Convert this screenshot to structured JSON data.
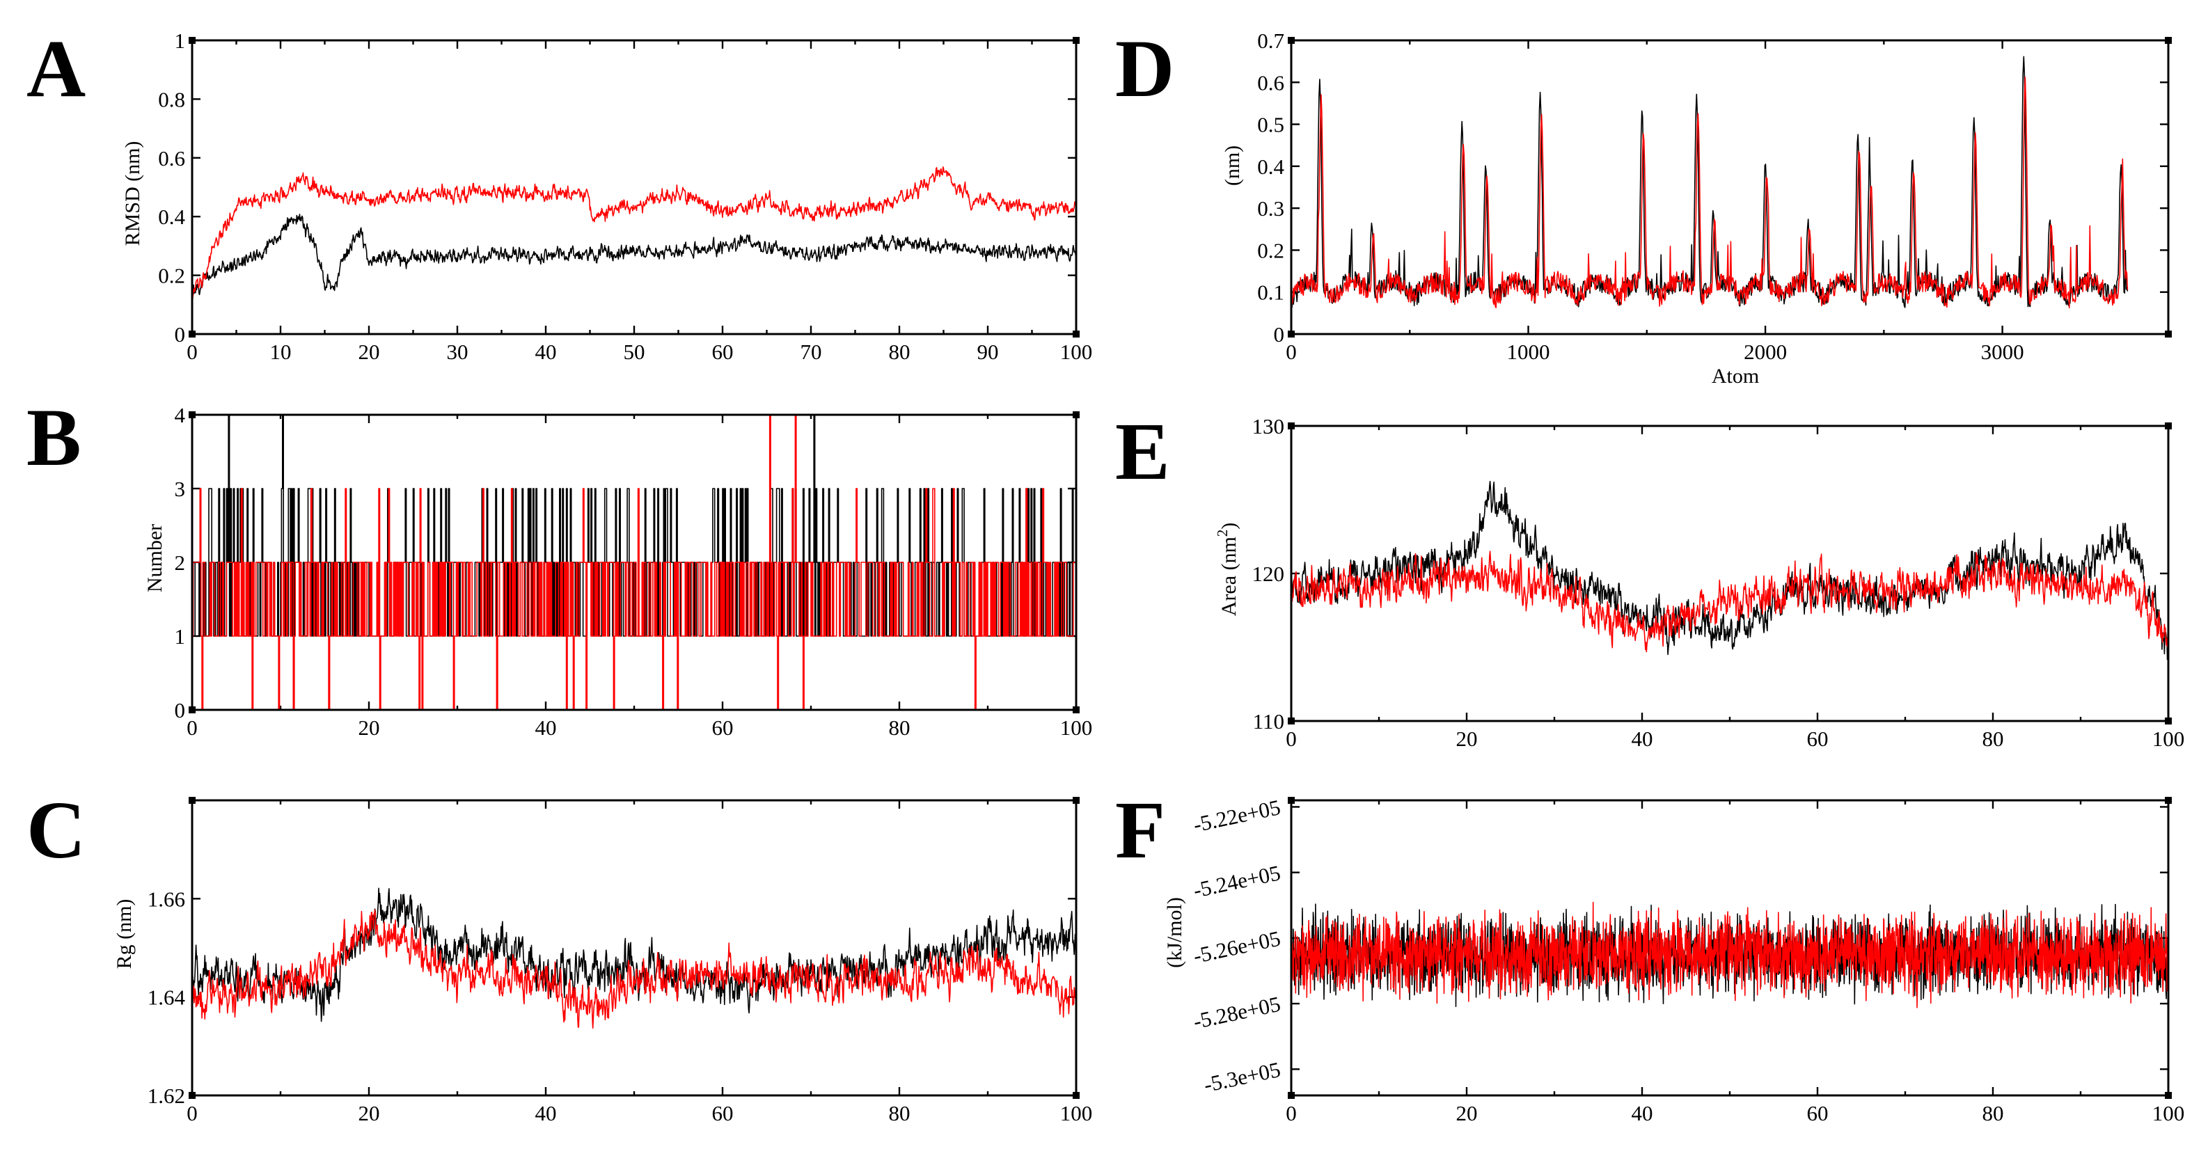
{
  "colors": {
    "series_black": "#000000",
    "series_red": "#ff0000",
    "axis": "#000000",
    "background": "#ffffff"
  },
  "chart_data": [
    {
      "panel": "A",
      "type": "line",
      "xlabel": "",
      "ylabel": "RMSD (nm)",
      "xlim": [
        0,
        100
      ],
      "ylim": [
        0,
        1
      ],
      "xticks": [
        "0",
        "10",
        "20",
        "30",
        "40",
        "50",
        "60",
        "70",
        "80",
        "90",
        "100"
      ],
      "yticks": [
        "0",
        "0.2",
        "0.4",
        "0.6",
        "0.8",
        "1"
      ],
      "series": [
        {
          "name": "black",
          "color": "#000000",
          "segments": [
            [
              0,
              0.15
            ],
            [
              3,
              0.22
            ],
            [
              6,
              0.25
            ],
            [
              8,
              0.28
            ],
            [
              10,
              0.35
            ],
            [
              12,
              0.4
            ],
            [
              14,
              0.3
            ],
            [
              15,
              0.18
            ],
            [
              16,
              0.15
            ],
            [
              17,
              0.25
            ],
            [
              18,
              0.3
            ],
            [
              19,
              0.35
            ],
            [
              20,
              0.26
            ],
            [
              30,
              0.27
            ],
            [
              40,
              0.27
            ],
            [
              50,
              0.28
            ],
            [
              60,
              0.29
            ],
            [
              63,
              0.32
            ],
            [
              65,
              0.29
            ],
            [
              70,
              0.27
            ],
            [
              75,
              0.3
            ],
            [
              80,
              0.31
            ],
            [
              90,
              0.28
            ],
            [
              100,
              0.28
            ]
          ],
          "noise": 0.025
        },
        {
          "name": "red",
          "color": "#ff0000",
          "segments": [
            [
              0,
              0.12
            ],
            [
              3,
              0.32
            ],
            [
              5,
              0.44
            ],
            [
              10,
              0.47
            ],
            [
              12,
              0.53
            ],
            [
              15,
              0.49
            ],
            [
              20,
              0.45
            ],
            [
              25,
              0.47
            ],
            [
              30,
              0.48
            ],
            [
              40,
              0.48
            ],
            [
              44.8,
              0.48
            ],
            [
              45.2,
              0.4
            ],
            [
              50,
              0.44
            ],
            [
              55,
              0.48
            ],
            [
              60,
              0.42
            ],
            [
              65,
              0.45
            ],
            [
              70,
              0.41
            ],
            [
              75,
              0.43
            ],
            [
              80,
              0.45
            ],
            [
              85,
              0.56
            ],
            [
              88,
              0.46
            ],
            [
              95,
              0.43
            ],
            [
              100,
              0.43
            ]
          ],
          "noise": 0.025
        }
      ]
    },
    {
      "panel": "B",
      "type": "line",
      "xlabel": "",
      "ylabel": "Number",
      "xlim": [
        0,
        100
      ],
      "ylim": [
        0,
        4
      ],
      "xticks": [
        "0",
        "20",
        "40",
        "60",
        "80",
        "100"
      ],
      "yticks": [
        "0",
        "1",
        "2",
        "3",
        "4"
      ],
      "series": [
        {
          "name": "black",
          "color": "#000000",
          "levels": [
            1,
            2,
            3,
            4
          ],
          "weights": [
            0.45,
            0.43,
            0.115,
            0.005
          ]
        },
        {
          "name": "red",
          "color": "#ff0000",
          "levels": [
            0,
            1,
            2,
            3,
            4
          ],
          "weights": [
            0.02,
            0.5,
            0.46,
            0.015,
            0.005
          ]
        }
      ]
    },
    {
      "panel": "C",
      "type": "line",
      "xlabel": "",
      "ylabel": "Rg (nm)",
      "xlim": [
        0,
        100
      ],
      "ylim": [
        1.62,
        1.68
      ],
      "xticks": [
        "0",
        "20",
        "40",
        "60",
        "80",
        "100"
      ],
      "yticks": [
        "1.62",
        "1.64",
        "1.66"
      ],
      "ytick_values": [
        1.62,
        1.64,
        1.66
      ],
      "series": [
        {
          "name": "black",
          "color": "#000000",
          "segments": [
            [
              0,
              1.645
            ],
            [
              10,
              1.643
            ],
            [
              15,
              1.64
            ],
            [
              20,
              1.655
            ],
            [
              24,
              1.66
            ],
            [
              28,
              1.65
            ],
            [
              35,
              1.65
            ],
            [
              40,
              1.645
            ],
            [
              50,
              1.646
            ],
            [
              60,
              1.642
            ],
            [
              70,
              1.645
            ],
            [
              80,
              1.646
            ],
            [
              90,
              1.652
            ],
            [
              100,
              1.652
            ]
          ],
          "noise": 0.004
        },
        {
          "name": "red",
          "color": "#ff0000",
          "segments": [
            [
              0,
              1.64
            ],
            [
              10,
              1.642
            ],
            [
              15,
              1.645
            ],
            [
              20,
              1.654
            ],
            [
              25,
              1.65
            ],
            [
              30,
              1.645
            ],
            [
              40,
              1.643
            ],
            [
              45,
              1.638
            ],
            [
              50,
              1.643
            ],
            [
              60,
              1.645
            ],
            [
              70,
              1.643
            ],
            [
              80,
              1.644
            ],
            [
              90,
              1.646
            ],
            [
              100,
              1.64
            ]
          ],
          "noise": 0.004
        }
      ]
    },
    {
      "panel": "D",
      "type": "line",
      "xlabel": "Atom",
      "ylabel": "(nm)",
      "xlim": [
        0,
        3700
      ],
      "ylim": [
        0,
        0.7
      ],
      "xticks": [
        "0",
        "1000",
        "2000",
        "3000"
      ],
      "xtick_values": [
        0,
        1000,
        2000,
        3000
      ],
      "yticks": [
        "0",
        "0.1",
        "0.2",
        "0.3",
        "0.4",
        "0.5",
        "0.6",
        "0.7"
      ],
      "n_atoms": 3530,
      "peaks": [
        [
          120,
          0.6
        ],
        [
          340,
          0.25
        ],
        [
          720,
          0.49
        ],
        [
          820,
          0.4
        ],
        [
          1050,
          0.56
        ],
        [
          1480,
          0.52
        ],
        [
          1710,
          0.56
        ],
        [
          1780,
          0.28
        ],
        [
          2000,
          0.4
        ],
        [
          2180,
          0.26
        ],
        [
          2390,
          0.47
        ],
        [
          2440,
          0.38
        ],
        [
          2620,
          0.41
        ],
        [
          2880,
          0.5
        ],
        [
          3090,
          0.65
        ],
        [
          3200,
          0.27
        ],
        [
          3500,
          0.39
        ]
      ],
      "series": [
        {
          "name": "black",
          "color": "#000000"
        },
        {
          "name": "red",
          "color": "#ff0000"
        }
      ]
    },
    {
      "panel": "E",
      "type": "line",
      "xlabel": "",
      "ylabel": "Area (nm",
      "ylabel_sup": "2",
      "ylabel_close": ")",
      "xlim": [
        0,
        100
      ],
      "ylim": [
        110,
        130
      ],
      "xticks": [
        "0",
        "20",
        "40",
        "60",
        "80",
        "100"
      ],
      "yticks": [
        "110",
        "120",
        "130"
      ],
      "ytick_values": [
        110,
        120,
        130
      ],
      "series": [
        {
          "name": "black",
          "color": "#000000",
          "segments": [
            [
              0,
              119
            ],
            [
              10,
              120
            ],
            [
              20,
              121
            ],
            [
              23,
              125
            ],
            [
              25,
              124
            ],
            [
              30,
              120
            ],
            [
              35,
              119
            ],
            [
              40,
              117
            ],
            [
              50,
              116
            ],
            [
              55,
              118
            ],
            [
              60,
              119
            ],
            [
              70,
              118
            ],
            [
              80,
              121
            ],
            [
              90,
              120
            ],
            [
              95,
              123
            ],
            [
              100,
              115
            ]
          ],
          "noise": 1.3
        },
        {
          "name": "red",
          "color": "#ff0000",
          "segments": [
            [
              0,
              119
            ],
            [
              10,
              119
            ],
            [
              20,
              120
            ],
            [
              30,
              119
            ],
            [
              40,
              116
            ],
            [
              45,
              117
            ],
            [
              50,
              118
            ],
            [
              60,
              119
            ],
            [
              70,
              119
            ],
            [
              80,
              120
            ],
            [
              90,
              119
            ],
            [
              95,
              119
            ],
            [
              100,
              116
            ]
          ],
          "noise": 1.3
        }
      ]
    },
    {
      "panel": "F",
      "type": "line",
      "xlabel": "",
      "ylabel": "(kJ/mol)",
      "xlim": [
        0,
        100
      ],
      "ylim": [
        -530800,
        -521800
      ],
      "xticks": [
        "0",
        "20",
        "40",
        "60",
        "80",
        "100"
      ],
      "yticks": [
        "-5.3e+05",
        "-5.28e+05",
        "-5.26e+05",
        "-5.24e+05",
        "-5.22e+05"
      ],
      "ytick_values": [
        -530000,
        -528000,
        -526000,
        -524000,
        -522000
      ],
      "mean": -526500,
      "series": [
        {
          "name": "black",
          "color": "#000000",
          "amplitude": 1000
        },
        {
          "name": "red",
          "color": "#ff0000",
          "amplitude": 1000
        }
      ]
    }
  ]
}
